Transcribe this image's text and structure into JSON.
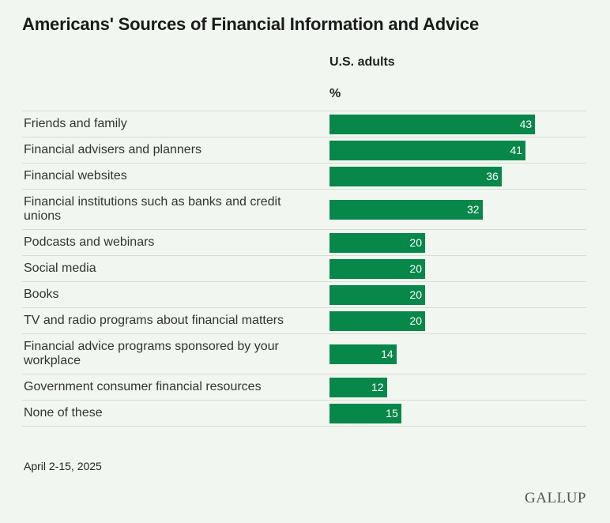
{
  "chart_data": {
    "type": "bar",
    "orientation": "horizontal",
    "title": "Americans' Sources of Financial Information and Advice",
    "subtitle": "U.S. adults",
    "unit": "%",
    "categories": [
      "Friends and family",
      "Financial advisers and planners",
      "Financial websites",
      "Financial institutions such as banks and credit unions",
      "Podcasts and webinars",
      "Social media",
      "Books",
      "TV and radio programs about financial matters",
      "Financial advice programs sponsored by your workplace",
      "Government consumer financial resources",
      "None of these"
    ],
    "values": [
      43,
      41,
      36,
      32,
      20,
      20,
      20,
      20,
      14,
      12,
      15
    ],
    "color": "#07874a",
    "footnote": "April 2-15, 2025",
    "source": "GALLUP"
  }
}
